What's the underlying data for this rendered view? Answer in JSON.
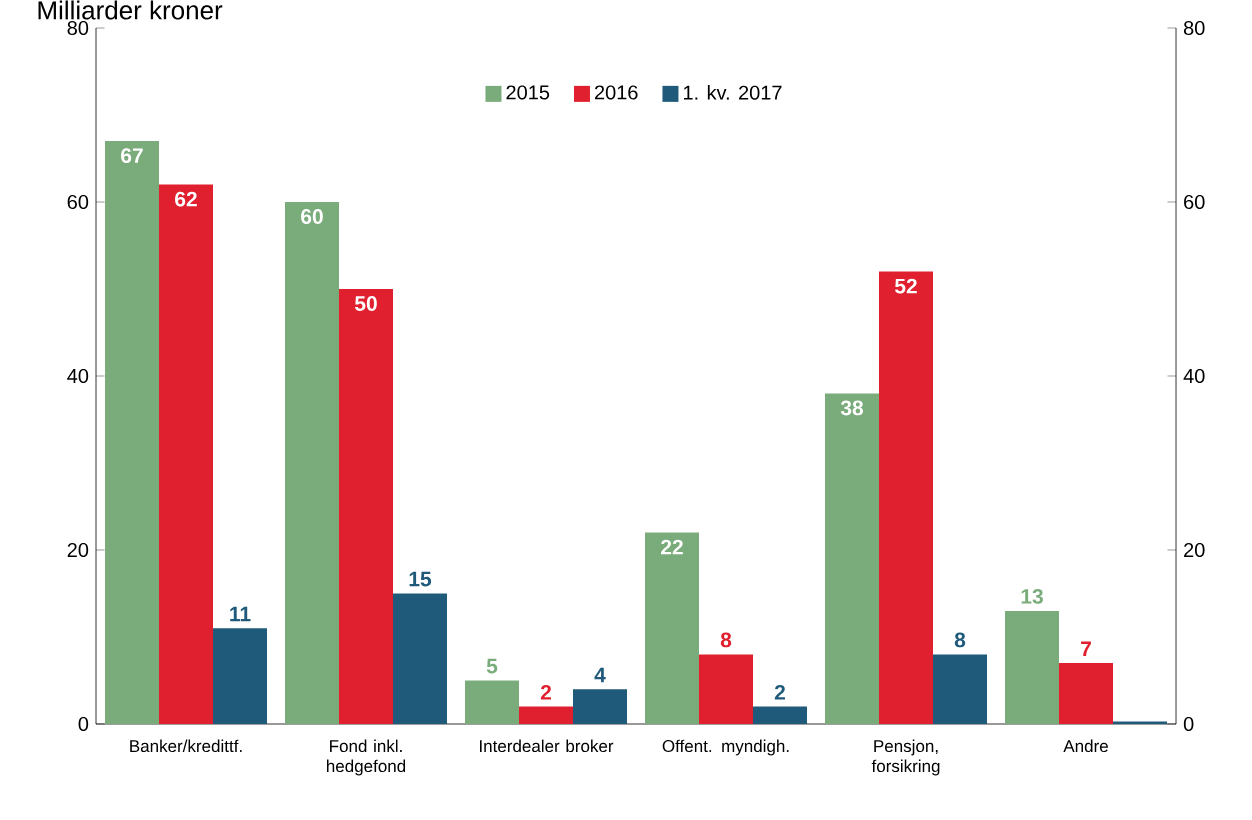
{
  "chart_data": {
    "type": "bar",
    "title": "Milliarder kroner",
    "categories": [
      "Banker/kredittf.",
      "Fond inkl. hedgefond",
      "Interdealer broker",
      "Offent. myndigh.",
      "Pensjon, forsikring",
      "Andre"
    ],
    "series": [
      {
        "name": "2015",
        "color": "#7aab7a",
        "values": [
          67,
          60,
          5,
          22,
          38,
          13
        ],
        "value_labels": [
          "67",
          "60",
          "5",
          "22",
          "38",
          "13"
        ]
      },
      {
        "name": "2016",
        "color": "#e0202e",
        "values": [
          62,
          50,
          2,
          8,
          52,
          7
        ],
        "value_labels": [
          "62",
          "50",
          "2",
          "8",
          "52",
          "7"
        ]
      },
      {
        "name": "1. kv. 2017",
        "color": "#1f5a7a",
        "values": [
          11,
          15,
          4,
          2,
          8,
          0.3
        ],
        "value_labels": [
          "11",
          "15",
          "4",
          "2",
          "8",
          null
        ]
      }
    ],
    "ylim": [
      0,
      80
    ],
    "yticks": [
      0,
      20,
      40,
      60,
      80
    ],
    "y2lim": [
      0,
      80
    ],
    "y2ticks": [
      0,
      20,
      40,
      60,
      80
    ],
    "grid": false,
    "legend": "top"
  }
}
